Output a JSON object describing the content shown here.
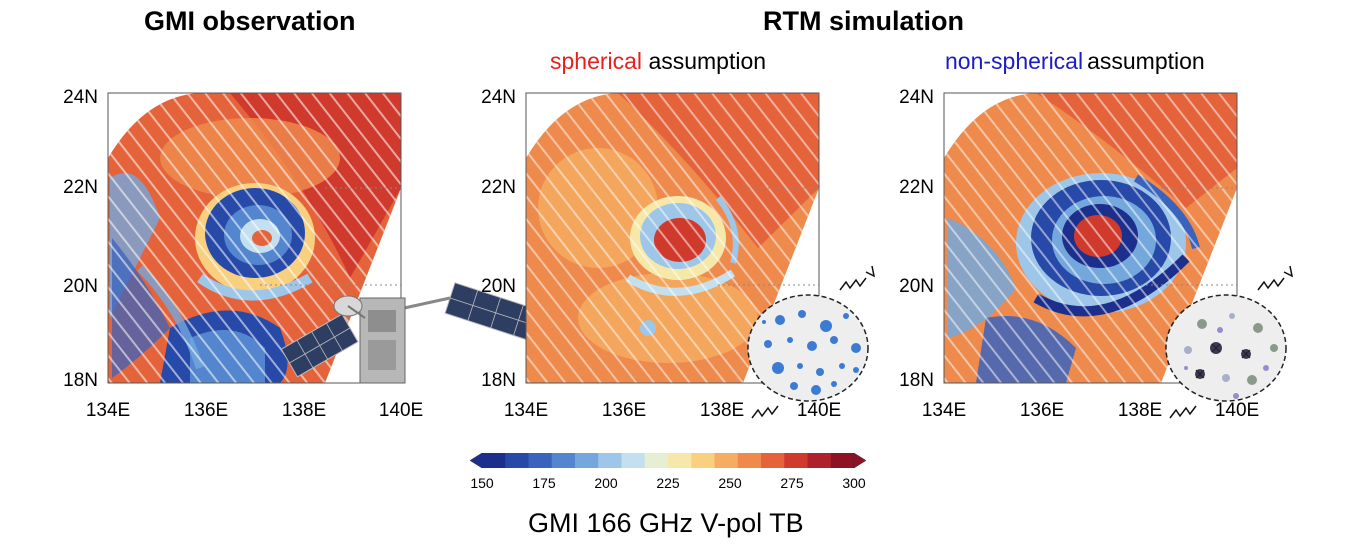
{
  "titles": {
    "left": "GMI observation",
    "right": "RTM simulation"
  },
  "subtitles": {
    "spherical_word": "spherical",
    "spherical_rest": "assumption",
    "nonspherical_word": "non-spherical",
    "nonspherical_rest": "assumption"
  },
  "axes": {
    "lat_labels": [
      "24N",
      "22N",
      "20N",
      "18N"
    ],
    "lon_labels": [
      "134E",
      "136E",
      "138E",
      "140E"
    ]
  },
  "panels": [
    {
      "id": "observation",
      "eye": "cold-ring"
    },
    {
      "id": "spherical",
      "eye": "warm-core",
      "particles": "spheres"
    },
    {
      "id": "nonspherical",
      "eye": "warm-core",
      "particles": "aggregates"
    }
  ],
  "colorbar": {
    "ticks": [
      "150",
      "175",
      "200",
      "225",
      "250",
      "275",
      "300"
    ],
    "caption": "GMI 166 GHz V-pol TB",
    "colors": [
      "#1c2f8c",
      "#2749a8",
      "#3a63bd",
      "#5386cf",
      "#74a8dd",
      "#9dc6e8",
      "#c4e0ef",
      "#e6efd2",
      "#f6e8a8",
      "#f8d080",
      "#f5ad62",
      "#ee8a4c",
      "#e4633a",
      "#d03a2c",
      "#b0222a",
      "#8c1224"
    ]
  },
  "colors": {
    "red_label": "#e8201c",
    "blue_label": "#1c1cc4",
    "frame": "#555555"
  }
}
